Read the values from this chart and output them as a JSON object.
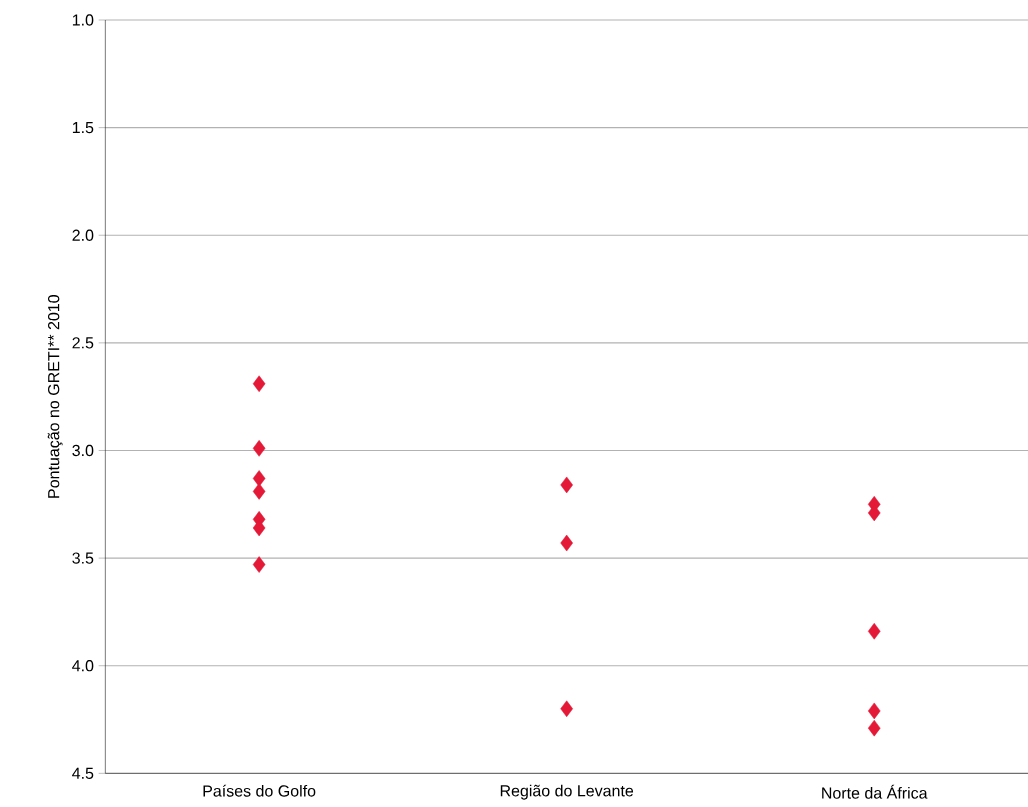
{
  "chart_data": {
    "type": "scatter",
    "ylabel": "Pontuação no GRETI** 2010",
    "categories": [
      "Países do Golfo",
      "Região do Levante",
      "Norte da África"
    ],
    "series": [
      {
        "color": "#e31937",
        "x": [
          "Países do Golfo",
          "Países do Golfo",
          "Países do Golfo",
          "Países do Golfo",
          "Países do Golfo",
          "Países do Golfo",
          "Países do Golfo"
        ],
        "values": [
          2.69,
          2.99,
          3.13,
          3.19,
          3.32,
          3.36,
          3.53
        ]
      },
      {
        "color": "#e31937",
        "x": [
          "Região do Levante",
          "Região do Levante",
          "Região do Levante"
        ],
        "values": [
          3.16,
          3.43,
          4.2
        ]
      },
      {
        "color": "#e31937",
        "x": [
          "Norte da África",
          "Norte da África",
          "Norte da África",
          "Norte da África",
          "Norte da África"
        ],
        "values": [
          3.25,
          3.29,
          3.84,
          4.21,
          4.29
        ]
      }
    ],
    "ylim": [
      4.5,
      1.0
    ],
    "yticks": [
      {
        "value": 1,
        "label": "1.0"
      },
      1.5,
      {
        "value": 2,
        "label": "2.0"
      },
      2.5,
      {
        "value": 3,
        "label": "3.0"
      },
      3.5,
      {
        "value": 4,
        "label": "4.0"
      },
      4.5
    ],
    "grid": "y",
    "marker": "diamond"
  }
}
